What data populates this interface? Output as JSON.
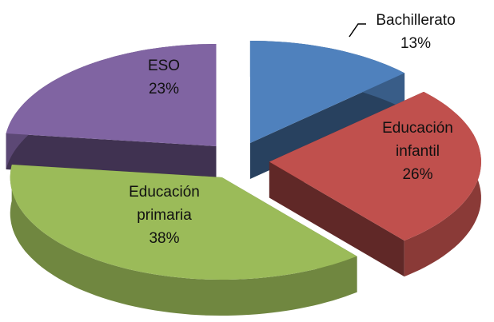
{
  "chart_data": {
    "type": "pie",
    "categories": [
      "Bachillerato",
      "Educación infantil",
      "Educación primaria",
      "ESO"
    ],
    "values": [
      13,
      26,
      38,
      23
    ],
    "value_labels": [
      "13%",
      "26%",
      "38%",
      "23%"
    ],
    "colors": [
      "#4f81bd",
      "#c0504d",
      "#9bbb59",
      "#8064a2"
    ]
  }
}
